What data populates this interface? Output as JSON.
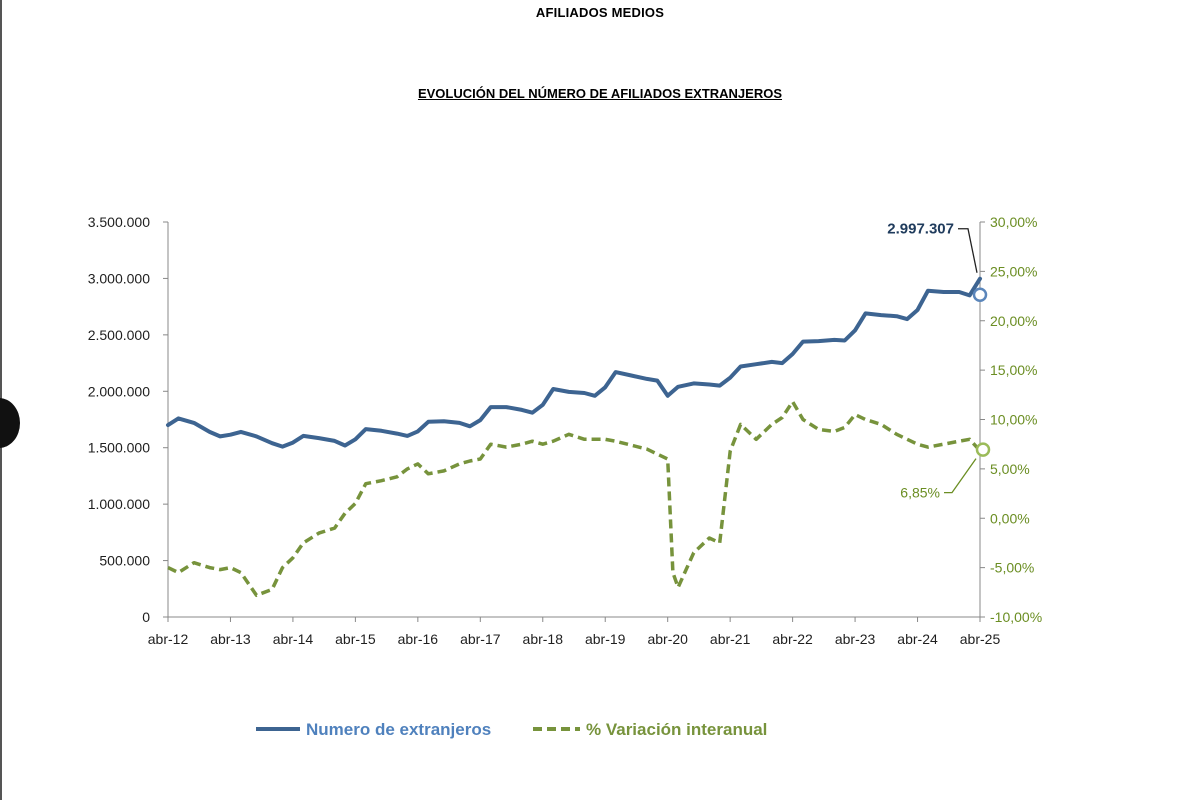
{
  "page": {
    "header": "AFILIADOS MEDIOS",
    "chart_title": "EVOLUCIÓN DEL NÚMERO DE AFILIADOS EXTRANJEROS"
  },
  "colors": {
    "series_blue": "#3d6491",
    "series_green": "#77933c",
    "axis_right": "#6b8e23"
  },
  "chart_data": {
    "type": "line",
    "title": "EVOLUCIÓN DEL NÚMERO DE AFILIADOS EXTRANJEROS",
    "x_tick_labels": [
      "abr-12",
      "abr-13",
      "abr-14",
      "abr-15",
      "abr-16",
      "abr-17",
      "abr-18",
      "abr-19",
      "abr-20",
      "abr-21",
      "abr-22",
      "abr-23",
      "abr-24",
      "abr-25"
    ],
    "y_left": {
      "ylim": [
        0,
        3500000
      ],
      "tick_labels": [
        "0",
        "500.000",
        "1.000.000",
        "1.500.000",
        "2.000.000",
        "2.500.000",
        "3.000.000",
        "3.500.000"
      ]
    },
    "y_right": {
      "ylim": [
        -10,
        30
      ],
      "tick_labels": [
        "-10,00%",
        "-5,00%",
        "0,00%",
        "5,00%",
        "10,00%",
        "15,00%",
        "20,00%",
        "25,00%",
        "30,00%"
      ]
    },
    "grid": false,
    "legend_position": "bottom",
    "series": [
      {
        "name": "Numero de extranjeros",
        "axis": "left",
        "style": "solid",
        "points": [
          [
            "abr-12",
            1700000
          ],
          [
            "jun-12",
            1760000
          ],
          [
            "sep-12",
            1720000
          ],
          [
            "dic-12",
            1640000
          ],
          [
            "feb-13",
            1600000
          ],
          [
            "abr-13",
            1615000
          ],
          [
            "jun-13",
            1640000
          ],
          [
            "sep-13",
            1600000
          ],
          [
            "dic-13",
            1540000
          ],
          [
            "feb-14",
            1510000
          ],
          [
            "abr-14",
            1545000
          ],
          [
            "jun-14",
            1605000
          ],
          [
            "sep-14",
            1585000
          ],
          [
            "dic-14",
            1560000
          ],
          [
            "feb-15",
            1520000
          ],
          [
            "abr-15",
            1575000
          ],
          [
            "jun-15",
            1665000
          ],
          [
            "sep-15",
            1650000
          ],
          [
            "dic-15",
            1625000
          ],
          [
            "feb-16",
            1605000
          ],
          [
            "abr-16",
            1645000
          ],
          [
            "jun-16",
            1730000
          ],
          [
            "sep-16",
            1735000
          ],
          [
            "dic-16",
            1720000
          ],
          [
            "feb-17",
            1690000
          ],
          [
            "abr-17",
            1745000
          ],
          [
            "jun-17",
            1860000
          ],
          [
            "sep-17",
            1860000
          ],
          [
            "dic-17",
            1835000
          ],
          [
            "feb-18",
            1810000
          ],
          [
            "abr-18",
            1880000
          ],
          [
            "jun-18",
            2020000
          ],
          [
            "sep-18",
            1995000
          ],
          [
            "dic-18",
            1985000
          ],
          [
            "feb-19",
            1960000
          ],
          [
            "abr-19",
            2035000
          ],
          [
            "jun-19",
            2170000
          ],
          [
            "sep-19",
            2140000
          ],
          [
            "dic-19",
            2110000
          ],
          [
            "feb-20",
            2095000
          ],
          [
            "abr-20",
            1960000
          ],
          [
            "jun-20",
            2040000
          ],
          [
            "sep-20",
            2070000
          ],
          [
            "dic-20",
            2060000
          ],
          [
            "feb-21",
            2050000
          ],
          [
            "abr-21",
            2120000
          ],
          [
            "jun-21",
            2220000
          ],
          [
            "sep-21",
            2240000
          ],
          [
            "dic-21",
            2260000
          ],
          [
            "feb-22",
            2250000
          ],
          [
            "abr-22",
            2330000
          ],
          [
            "jun-22",
            2440000
          ],
          [
            "sep-22",
            2445000
          ],
          [
            "dic-22",
            2455000
          ],
          [
            "feb-23",
            2450000
          ],
          [
            "abr-23",
            2540000
          ],
          [
            "jun-23",
            2690000
          ],
          [
            "sep-23",
            2675000
          ],
          [
            "dic-23",
            2665000
          ],
          [
            "feb-24",
            2640000
          ],
          [
            "abr-24",
            2720000
          ],
          [
            "jun-24",
            2890000
          ],
          [
            "sep-24",
            2880000
          ],
          [
            "dic-24",
            2880000
          ],
          [
            "feb-25",
            2850000
          ],
          [
            "abr-25",
            2997307
          ]
        ]
      },
      {
        "name": "% Variación interanual",
        "axis": "right",
        "style": "dashed",
        "points": [
          [
            "abr-12",
            -5.0
          ],
          [
            "jun-12",
            -5.5
          ],
          [
            "sep-12",
            -4.5
          ],
          [
            "dic-12",
            -5.0
          ],
          [
            "feb-13",
            -5.2
          ],
          [
            "abr-13",
            -5.0
          ],
          [
            "jun-13",
            -5.5
          ],
          [
            "sep-13",
            -7.8
          ],
          [
            "dic-13",
            -7.2
          ],
          [
            "feb-14",
            -5.0
          ],
          [
            "abr-14",
            -4.0
          ],
          [
            "jun-14",
            -2.5
          ],
          [
            "sep-14",
            -1.5
          ],
          [
            "dic-14",
            -1.0
          ],
          [
            "feb-15",
            0.5
          ],
          [
            "abr-15",
            1.5
          ],
          [
            "jun-15",
            3.5
          ],
          [
            "sep-15",
            3.8
          ],
          [
            "dic-15",
            4.2
          ],
          [
            "feb-16",
            5.0
          ],
          [
            "abr-16",
            5.5
          ],
          [
            "jun-16",
            4.5
          ],
          [
            "sep-16",
            4.8
          ],
          [
            "dic-16",
            5.5
          ],
          [
            "feb-17",
            5.8
          ],
          [
            "abr-17",
            6.0
          ],
          [
            "jun-17",
            7.5
          ],
          [
            "sep-17",
            7.2
          ],
          [
            "dic-17",
            7.5
          ],
          [
            "feb-18",
            7.8
          ],
          [
            "abr-18",
            7.5
          ],
          [
            "jun-18",
            7.8
          ],
          [
            "sep-18",
            8.5
          ],
          [
            "dic-18",
            8.0
          ],
          [
            "feb-19",
            8.0
          ],
          [
            "abr-19",
            8.0
          ],
          [
            "jun-19",
            7.8
          ],
          [
            "sep-19",
            7.4
          ],
          [
            "dic-19",
            7.0
          ],
          [
            "feb-20",
            6.5
          ],
          [
            "abr-20",
            6.0
          ],
          [
            "may-20",
            -5.5
          ],
          [
            "jun-20",
            -7.0
          ],
          [
            "sep-20",
            -3.5
          ],
          [
            "dic-20",
            -2.0
          ],
          [
            "feb-21",
            -2.5
          ],
          [
            "abr-21",
            6.8
          ],
          [
            "jun-21",
            9.5
          ],
          [
            "sep-21",
            8.0
          ],
          [
            "dic-21",
            9.5
          ],
          [
            "feb-22",
            10.2
          ],
          [
            "abr-22",
            11.8
          ],
          [
            "jun-22",
            10.0
          ],
          [
            "sep-22",
            9.0
          ],
          [
            "dic-22",
            8.8
          ],
          [
            "feb-23",
            9.2
          ],
          [
            "abr-23",
            10.5
          ],
          [
            "jun-23",
            10.0
          ],
          [
            "sep-23",
            9.5
          ],
          [
            "dic-23",
            8.5
          ],
          [
            "feb-24",
            8.0
          ],
          [
            "abr-24",
            7.5
          ],
          [
            "jun-24",
            7.2
          ],
          [
            "sep-24",
            7.5
          ],
          [
            "dic-24",
            7.8
          ],
          [
            "feb-25",
            8.0
          ],
          [
            "abr-25",
            6.85
          ]
        ]
      }
    ],
    "annotations": [
      {
        "series": "Numero de extranjeros",
        "label": "2.997.307"
      },
      {
        "series": "% Variación interanual",
        "label": "6,85%"
      }
    ]
  }
}
